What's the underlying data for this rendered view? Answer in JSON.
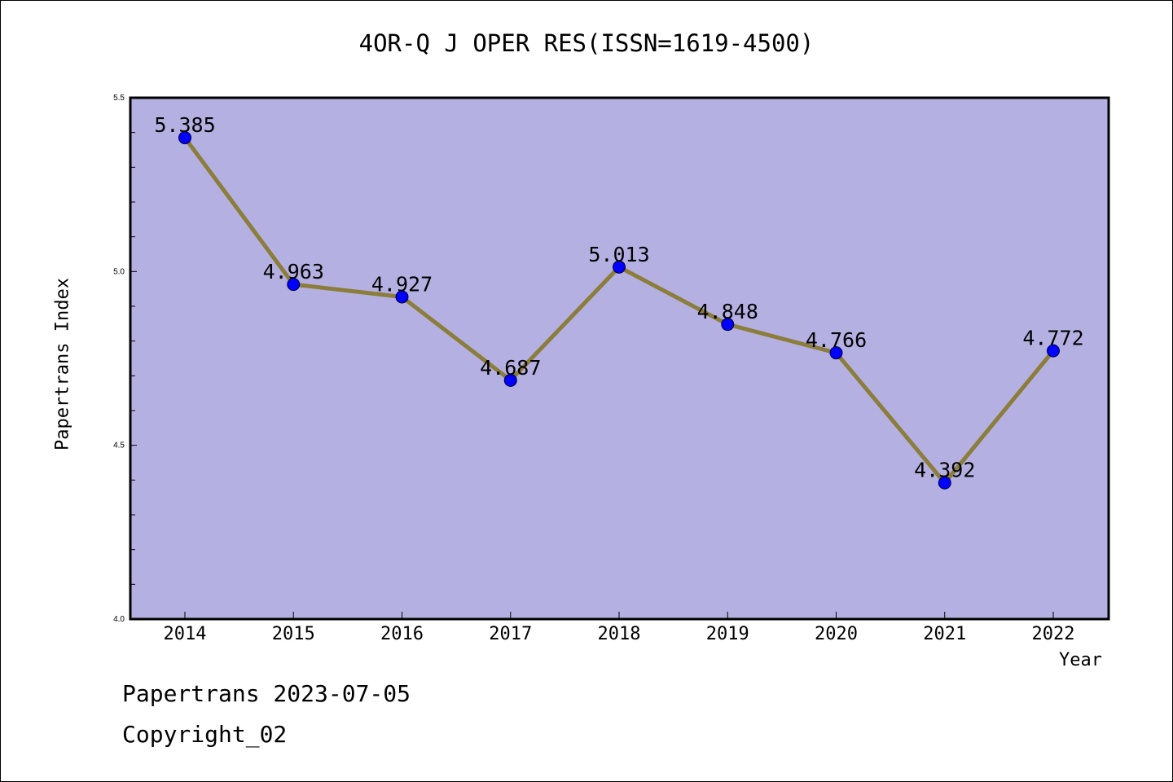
{
  "chart_data": {
    "type": "line",
    "title": "4OR-Q J OPER RES(ISSN=1619-4500)",
    "xlabel": "Year",
    "ylabel": "Papertrans Index",
    "categories": [
      "2014",
      "2015",
      "2016",
      "2017",
      "2018",
      "2019",
      "2020",
      "2021",
      "2022"
    ],
    "series": [
      {
        "values": [
          5.385,
          4.963,
          4.927,
          4.687,
          5.013,
          4.848,
          4.766,
          4.392,
          4.772
        ]
      }
    ],
    "data_labels": [
      "5.385",
      "4.963",
      "4.927",
      "4.687",
      "5.013",
      "4.848",
      "4.766",
      "4.392",
      "4.772"
    ],
    "ylim": [
      4.0,
      5.5
    ],
    "yticks": [
      "4.0",
      "4.5",
      "5.0",
      "5.5"
    ],
    "grid": false,
    "legend": "none",
    "colors": {
      "plot_background": "#b5b0e2",
      "line": "#8b7d3a",
      "marker": "#0000ff",
      "axes": "#000000"
    }
  },
  "footer": {
    "line1": "Papertrans 2023-07-05",
    "line2": "Copyright_02"
  }
}
